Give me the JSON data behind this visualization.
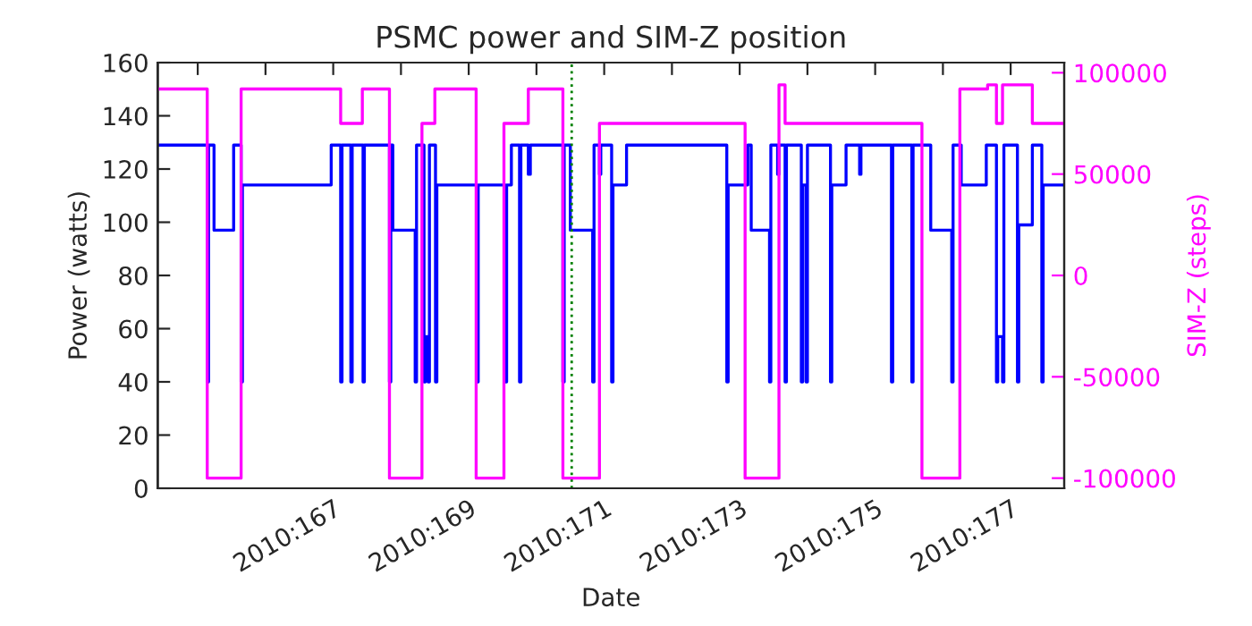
{
  "chart_data": {
    "type": "step",
    "title": "PSMC power and SIM-Z position",
    "xlabel": "Date",
    "ylabel": "Power (watts)",
    "y2label": "SIM-Z (steps)",
    "xlim": [
      "2010-06-13T09:50",
      "2010-06-26T18:58"
    ],
    "xticks": [
      {
        "value": "2010-06-14",
        "label": null
      },
      {
        "value": "2010-06-15",
        "label": null
      },
      {
        "value": "2010-06-16",
        "label": "2010:167"
      },
      {
        "value": "2010-06-17",
        "label": null
      },
      {
        "value": "2010-06-18",
        "label": "2010:169"
      },
      {
        "value": "2010-06-19",
        "label": null
      },
      {
        "value": "2010-06-20",
        "label": "2010:171"
      },
      {
        "value": "2010-06-21",
        "label": null
      },
      {
        "value": "2010-06-22",
        "label": "2010:173"
      },
      {
        "value": "2010-06-23",
        "label": null
      },
      {
        "value": "2010-06-24",
        "label": "2010:175"
      },
      {
        "value": "2010-06-25",
        "label": null
      },
      {
        "value": "2010-06-26",
        "label": "2010:177"
      }
    ],
    "ylim": [
      0,
      160
    ],
    "yticks": [
      0,
      20,
      40,
      60,
      80,
      100,
      120,
      140,
      160
    ],
    "y2lim": [
      -105000,
      105000
    ],
    "y2ticks": [
      -100000,
      -50000,
      0,
      50000,
      100000
    ],
    "grid": false,
    "line_style": "solid",
    "ref_lines": [
      {
        "axis": "x",
        "value": "2010-06-19T12:29",
        "color": "#008000",
        "line_style": "dotted"
      }
    ],
    "series": [
      {
        "color": "#0000ff",
        "axis": "y",
        "x": [
          "2010-06-13T09:50",
          "2010-06-14T03:22",
          "2010-06-14T03:50",
          "2010-06-14T05:46",
          "2010-06-14T12:43",
          "2010-06-14T15:22",
          "2010-06-14T15:50",
          "2010-06-15T23:17",
          "2010-06-16T02:38",
          "2010-06-16T03:07",
          "2010-06-16T06:14",
          "2010-06-16T06:43",
          "2010-06-16T10:34",
          "2010-06-16T11:02",
          "2010-06-16T19:55",
          "2010-06-16T20:24",
          "2010-06-16T21:07",
          "2010-06-17T05:02",
          "2010-06-17T05:31",
          "2010-06-17T08:10",
          "2010-06-17T08:38",
          "2010-06-17T09:36",
          "2010-06-17T10:05",
          "2010-06-17T12:14",
          "2010-06-17T12:43",
          "2010-06-18T02:53",
          "2010-06-18T03:22",
          "2010-06-18T12:58",
          "2010-06-18T13:26",
          "2010-06-18T15:07",
          "2010-06-18T18:00",
          "2010-06-18T18:29",
          "2010-06-18T21:07",
          "2010-06-18T21:50",
          "2010-06-19T09:22",
          "2010-06-19T09:50",
          "2010-06-19T12:00",
          "2010-06-19T19:55",
          "2010-06-19T20:24",
          "2010-06-19T22:19",
          "2010-06-19T22:48",
          "2010-06-20T02:38",
          "2010-06-20T03:07",
          "2010-06-20T07:55",
          "2010-06-21T19:26",
          "2010-06-21T19:55",
          "2010-06-22T02:53",
          "2010-06-22T04:05",
          "2010-06-22T10:34",
          "2010-06-22T11:02",
          "2010-06-22T13:26",
          "2010-06-22T13:55",
          "2010-06-22T16:05",
          "2010-06-22T16:34",
          "2010-06-22T21:50",
          "2010-06-22T22:19",
          "2010-06-22T23:31",
          "2010-06-23T00:00",
          "2010-06-23T08:10",
          "2010-06-23T08:38",
          "2010-06-23T13:41",
          "2010-06-23T18:29",
          "2010-06-23T18:58",
          "2010-06-24T05:46",
          "2010-06-24T06:14",
          "2010-06-24T12:58",
          "2010-06-24T13:26",
          "2010-06-24T19:41",
          "2010-06-25T03:07",
          "2010-06-25T03:36",
          "2010-06-25T06:29",
          "2010-06-25T15:22",
          "2010-06-25T18:58",
          "2010-06-25T19:26",
          "2010-06-25T21:07",
          "2010-06-25T21:36",
          "2010-06-26T02:24",
          "2010-06-26T02:53",
          "2010-06-26T07:41",
          "2010-06-26T11:02",
          "2010-06-26T11:31",
          "2010-06-26T18:58"
        ],
        "values": [
          129,
          40,
          129,
          97,
          129,
          40,
          114,
          129,
          40,
          129,
          40,
          129,
          40,
          129,
          40,
          129,
          97,
          40,
          129,
          40,
          57,
          40,
          129,
          40,
          114,
          40,
          114,
          40,
          114,
          129,
          40,
          129,
          118,
          129,
          40,
          129,
          97,
          40,
          129,
          118,
          129,
          40,
          114,
          129,
          40,
          114,
          129,
          97,
          40,
          129,
          118,
          129,
          40,
          129,
          40,
          114,
          40,
          129,
          40,
          114,
          129,
          118,
          129,
          40,
          129,
          40,
          129,
          97,
          40,
          129,
          114,
          129,
          40,
          57,
          40,
          129,
          40,
          99,
          129,
          40,
          114,
          114
        ]
      },
      {
        "color": "#ff00ff",
        "axis": "y2",
        "x": [
          "2010-06-13T09:50",
          "2010-06-14T03:22",
          "2010-06-14T15:22",
          "2010-06-16T02:38",
          "2010-06-16T10:19",
          "2010-06-16T19:55",
          "2010-06-17T07:26",
          "2010-06-17T12:00",
          "2010-06-18T02:38",
          "2010-06-18T12:29",
          "2010-06-18T21:07",
          "2010-06-19T09:22",
          "2010-06-19T22:19",
          "2010-06-22T01:55",
          "2010-06-22T13:55",
          "2010-06-22T16:05",
          "2010-06-24T16:34",
          "2010-06-25T06:00",
          "2010-06-25T15:50",
          "2010-06-25T18:58",
          "2010-06-25T21:07",
          "2010-06-26T07:41",
          "2010-06-26T18:58"
        ],
        "values": [
          92000,
          -100000,
          92000,
          75000,
          92000,
          -100000,
          75000,
          92000,
          -100000,
          75000,
          92000,
          -100000,
          75000,
          -100000,
          94000,
          75000,
          -100000,
          92000,
          94000,
          75000,
          94000,
          75000,
          75000
        ]
      }
    ]
  }
}
